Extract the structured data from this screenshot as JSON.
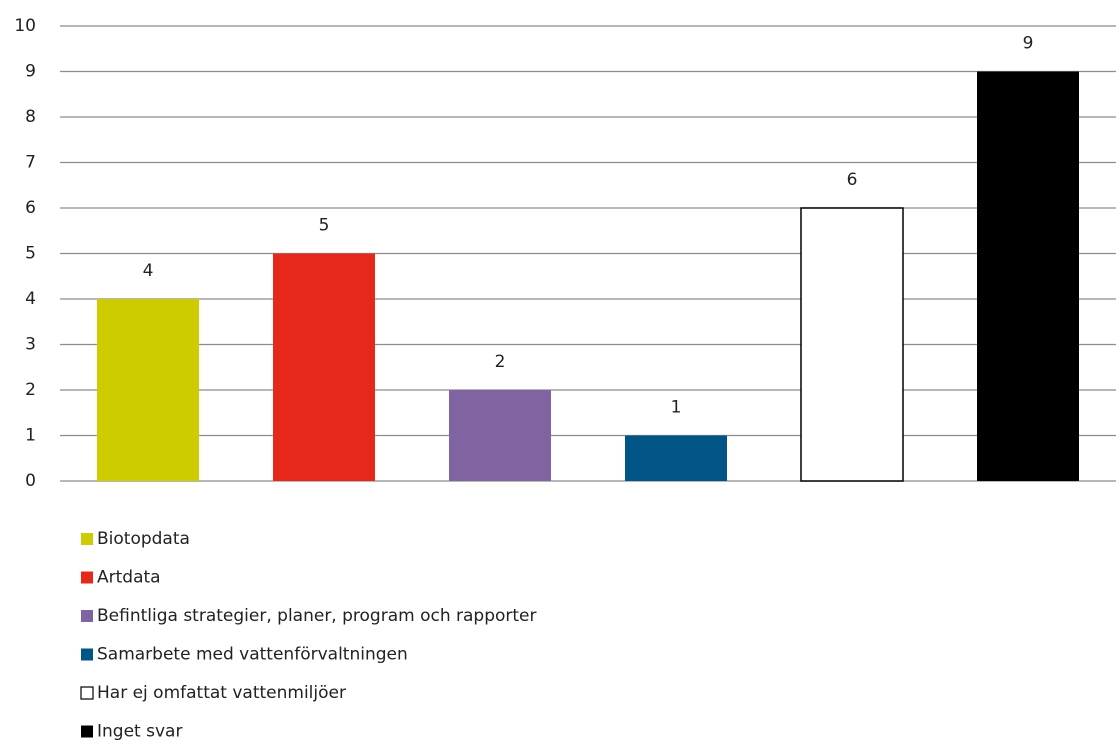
{
  "chart_data": {
    "type": "bar",
    "series": [
      {
        "name": "Biotopdata",
        "color": "#cccc00",
        "values": [
          4
        ]
      },
      {
        "name": "Artdata",
        "color": "#e5281a",
        "values": [
          5
        ]
      },
      {
        "name": "Befintliga strategier, planer, program och rapporter",
        "color": "#8064a2",
        "values": [
          2
        ]
      },
      {
        "name": "Samarbete med vattenförvaltningen",
        "color": "#005587",
        "values": [
          1
        ]
      },
      {
        "name": "Har ej omfattat vattenmiljöer",
        "color": "#ffffff",
        "values": [
          6
        ]
      },
      {
        "name": "Inget svar",
        "color": "#000000",
        "values": [
          9
        ]
      }
    ],
    "ylim": [
      0,
      10
    ],
    "yticks": [
      0,
      1,
      2,
      3,
      4,
      5,
      6,
      7,
      8,
      9,
      10
    ],
    "grid": true,
    "legend": "bottom"
  }
}
